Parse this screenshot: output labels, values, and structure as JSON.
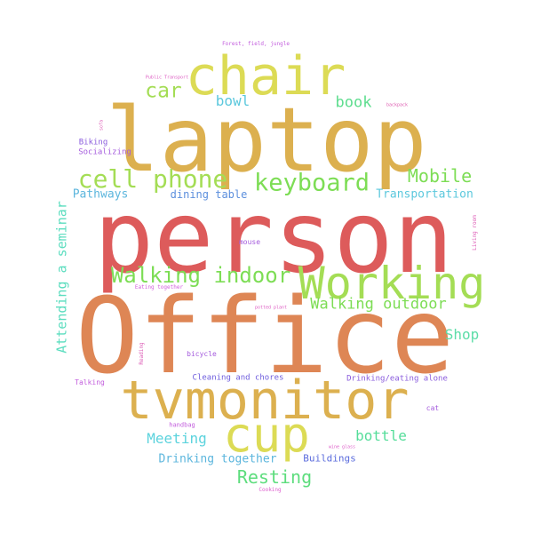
{
  "words": [
    {
      "text": "Office",
      "color": "#de8655"
    },
    {
      "text": "person",
      "color": "#dd5b5b"
    },
    {
      "text": "laptop",
      "color": "#dcb04f"
    },
    {
      "text": "tvmonitor",
      "color": "#dcb04f"
    },
    {
      "text": "chair",
      "color": "#dcdb55"
    },
    {
      "text": "Working",
      "color": "#a4dd55"
    },
    {
      "text": "cup",
      "color": "#dcdb55"
    },
    {
      "text": "cell phone",
      "color": "#a4dd55"
    },
    {
      "text": "keyboard",
      "color": "#7ddd55"
    },
    {
      "text": "Walking indoor",
      "color": "#7ddd55"
    },
    {
      "text": "car",
      "color": "#a4dd55"
    },
    {
      "text": "Mobile",
      "color": "#7ddd55"
    },
    {
      "text": "Resting",
      "color": "#5ddd7d"
    },
    {
      "text": "Walking outdoor",
      "color": "#7ddd55"
    },
    {
      "text": "book",
      "color": "#5ddd8e"
    },
    {
      "text": "bowl",
      "color": "#5cc8dd"
    },
    {
      "text": "bottle",
      "color": "#55dd9a"
    },
    {
      "text": "Meeting",
      "color": "#5cd3dd"
    },
    {
      "text": "Shop",
      "color": "#5ddda8"
    },
    {
      "text": "Attending a seminar",
      "color": "#5cddbf"
    },
    {
      "text": "Transportation",
      "color": "#5cc8dd"
    },
    {
      "text": "Pathways",
      "color": "#5cb6dd"
    },
    {
      "text": "dining table",
      "color": "#5c8fdd"
    },
    {
      "text": "Drinking together",
      "color": "#5cb6dd"
    },
    {
      "text": "Buildings",
      "color": "#5c6ddd"
    },
    {
      "text": "Cleaning and chores",
      "color": "#6d5cdd"
    },
    {
      "text": "Drinking/eating alone",
      "color": "#8a5cdd"
    },
    {
      "text": "Biking",
      "color": "#8a5cdd"
    },
    {
      "text": "Socializing",
      "color": "#a55cdd"
    },
    {
      "text": "mouse",
      "color": "#a55cdd"
    },
    {
      "text": "bicycle",
      "color": "#a55cdd"
    },
    {
      "text": "Talking",
      "color": "#c25cdd"
    },
    {
      "text": "cat",
      "color": "#a55cdd"
    },
    {
      "text": "handbag",
      "color": "#c25cdd"
    },
    {
      "text": "Forest, field, jungle",
      "color": "#c25cdd"
    },
    {
      "text": "Eating together",
      "color": "#d25cdd"
    },
    {
      "text": "Cooking",
      "color": "#dd5cce"
    },
    {
      "text": "Public Transport",
      "color": "#dd5cc2"
    },
    {
      "text": "backpack",
      "color": "#dd5cb0"
    },
    {
      "text": "sofa",
      "color": "#dd5cb6"
    },
    {
      "text": "potted plant",
      "color": "#dd5cc2"
    },
    {
      "text": "wine glass",
      "color": "#dd5cc8"
    },
    {
      "text": "Reading",
      "color": "#dd5cb6"
    },
    {
      "text": "Living room",
      "color": "#dd5cb6"
    }
  ]
}
